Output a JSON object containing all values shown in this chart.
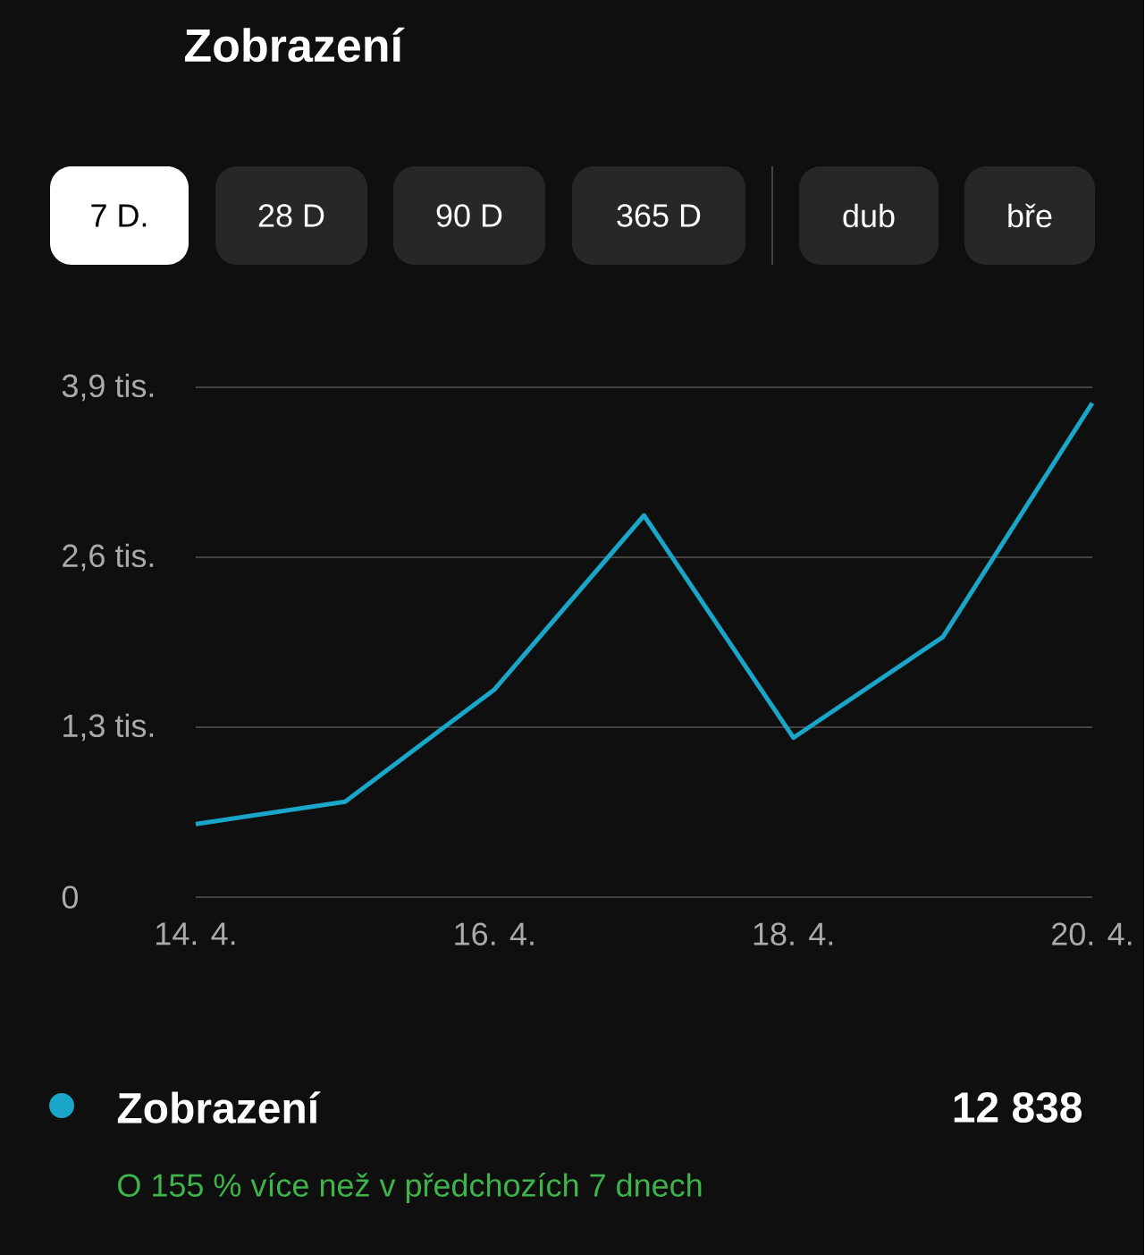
{
  "chart_data": {
    "type": "line",
    "title": "Zobrazení",
    "categories": [
      "14. 4.",
      null,
      "16. 4.",
      null,
      "18. 4.",
      null,
      "20. 4."
    ],
    "series": [
      {
        "name": "Zobrazení",
        "color": "#1aa6c8",
        "values": [
          0.56,
          0.73,
          1.59,
          2.92,
          1.22,
          1.99,
          3.78
        ]
      }
    ],
    "ylim": [
      0,
      3.9
    ],
    "yticks": [
      0,
      {
        "value": 1.3,
        "label": "1,3 tis."
      },
      {
        "value": 2.6,
        "label": "2,6 tis."
      },
      {
        "value": 3.9,
        "label": "3,9 tis."
      }
    ],
    "grid": "y",
    "legend": "bottom left",
    "annotations": [
      "7 D.",
      "28 D",
      "90 D",
      "365 D",
      "dub",
      "bře",
      "12 838",
      "O 155 % více než v předchozích 7 dnech"
    ]
  }
}
